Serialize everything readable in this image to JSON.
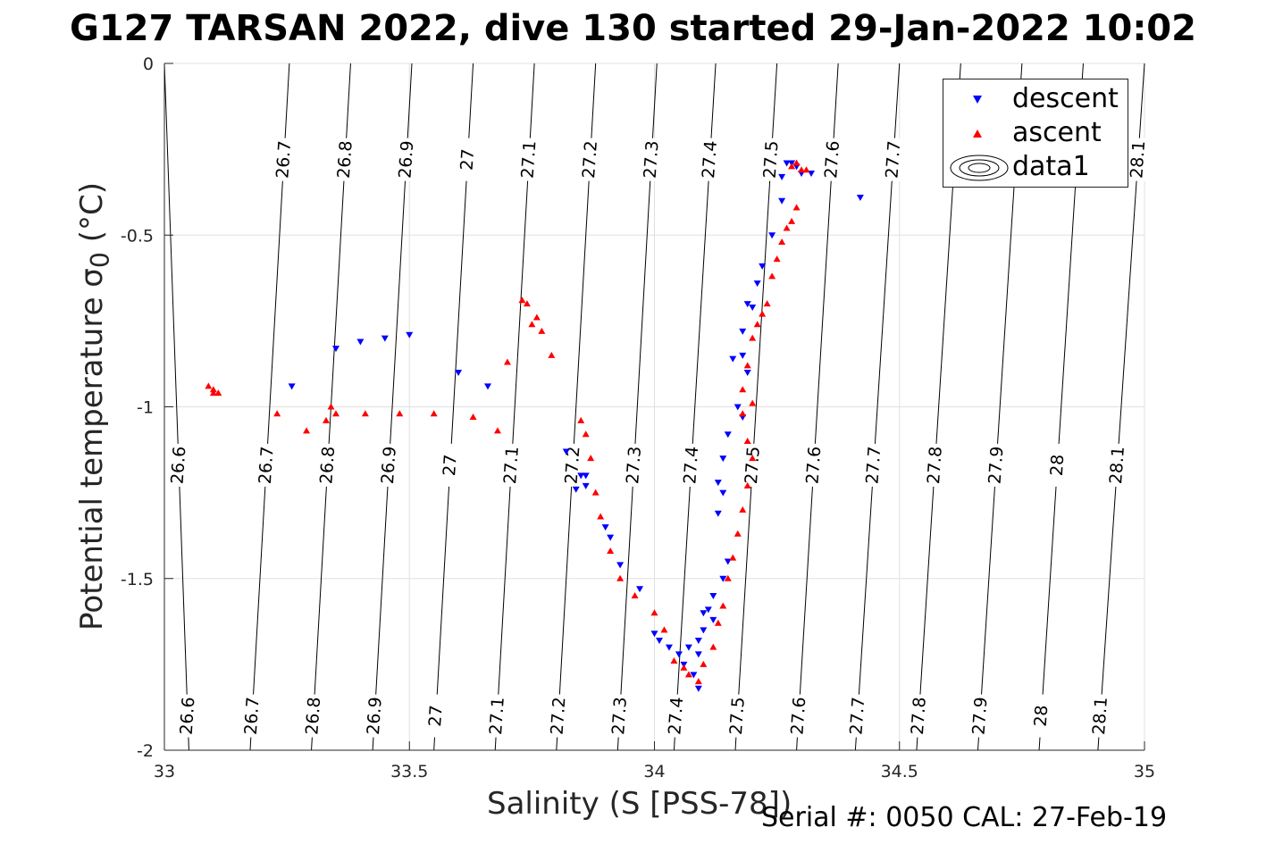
{
  "title": "G127 TARSAN 2022, dive 130 started 29-Jan-2022 10:02",
  "footer": "Serial #: 0050  CAL: 27-Feb-19",
  "legend": [
    {
      "label": "descent",
      "color": "#0000ff",
      "marker": "triangle-down"
    },
    {
      "label": "ascent",
      "color": "#ff0000",
      "marker": "triangle-up"
    },
    {
      "label": "data1",
      "color": "#000000",
      "marker": "contour"
    }
  ],
  "chart_data": {
    "type": "scatter",
    "title": "G127 TARSAN 2022, dive 130 started 29-Jan-2022 10:02",
    "xlabel_prefix": "Salinity (S [PSS-78])",
    "ylabel_main": "Potential temperature ",
    "ylabel_sigma": "σ",
    "ylabel_sub": "0",
    "ylabel_unit": " (°C)",
    "xlim": [
      33,
      35
    ],
    "ylim": [
      -2,
      0
    ],
    "xticks": [
      33,
      33.5,
      34,
      34.5,
      35
    ],
    "yticks": [
      0,
      -0.5,
      -1,
      -1.5,
      -2
    ],
    "grid": true,
    "legend_position": "top-right",
    "isopycnals": [
      {
        "label": "26.6",
        "bottom_s": 33.05,
        "top_s": 33.0
      },
      {
        "label": "26.7",
        "bottom_s": 33.175,
        "top_s": 33.255
      },
      {
        "label": "26.8",
        "bottom_s": 33.3,
        "top_s": 33.38
      },
      {
        "label": "26.9",
        "bottom_s": 33.425,
        "top_s": 33.505
      },
      {
        "label": "27",
        "bottom_s": 33.55,
        "top_s": 33.63
      },
      {
        "label": "27.1",
        "bottom_s": 33.675,
        "top_s": 33.755
      },
      {
        "label": "27.2",
        "bottom_s": 33.8,
        "top_s": 33.88
      },
      {
        "label": "27.3",
        "bottom_s": 33.925,
        "top_s": 34.005
      },
      {
        "label": "27.4",
        "bottom_s": 34.04,
        "top_s": 34.125
      },
      {
        "label": "27.5",
        "bottom_s": 34.165,
        "top_s": 34.25
      },
      {
        "label": "27.6",
        "bottom_s": 34.29,
        "top_s": 34.375
      },
      {
        "label": "27.7",
        "bottom_s": 34.41,
        "top_s": 34.5
      },
      {
        "label": "27.8",
        "bottom_s": 34.535,
        "top_s": 34.625
      },
      {
        "label": "27.9",
        "bottom_s": 34.66,
        "top_s": 34.75
      },
      {
        "label": "28",
        "bottom_s": 34.785,
        "top_s": 34.875
      },
      {
        "label": "28.1",
        "bottom_s": 34.905,
        "top_s": 35.0
      }
    ],
    "series": [
      {
        "name": "descent",
        "color": "#0000ff",
        "marker": "triangle-down",
        "points": [
          [
            34.27,
            -0.29
          ],
          [
            34.28,
            -0.29
          ],
          [
            34.29,
            -0.3
          ],
          [
            34.26,
            -0.33
          ],
          [
            34.3,
            -0.32
          ],
          [
            34.32,
            -0.32
          ],
          [
            34.42,
            -0.39
          ],
          [
            34.26,
            -0.4
          ],
          [
            34.24,
            -0.5
          ],
          [
            34.22,
            -0.59
          ],
          [
            34.21,
            -0.64
          ],
          [
            34.19,
            -0.7
          ],
          [
            34.2,
            -0.71
          ],
          [
            34.18,
            -0.78
          ],
          [
            34.16,
            -0.86
          ],
          [
            34.18,
            -0.85
          ],
          [
            34.19,
            -0.9
          ],
          [
            34.17,
            -1.0
          ],
          [
            34.18,
            -1.03
          ],
          [
            34.15,
            -1.08
          ],
          [
            34.14,
            -1.15
          ],
          [
            34.13,
            -1.22
          ],
          [
            34.14,
            -1.25
          ],
          [
            34.13,
            -1.31
          ],
          [
            34.15,
            -1.45
          ],
          [
            34.14,
            -1.5
          ],
          [
            34.12,
            -1.55
          ],
          [
            34.11,
            -1.59
          ],
          [
            34.1,
            -1.6
          ],
          [
            34.12,
            -1.62
          ],
          [
            34.1,
            -1.65
          ],
          [
            34.09,
            -1.68
          ],
          [
            34.07,
            -1.7
          ],
          [
            34.09,
            -1.72
          ],
          [
            34.06,
            -1.75
          ],
          [
            34.08,
            -1.78
          ],
          [
            34.09,
            -1.82
          ],
          [
            34.05,
            -1.72
          ],
          [
            34.03,
            -1.7
          ],
          [
            34.01,
            -1.68
          ],
          [
            34.0,
            -1.66
          ],
          [
            33.97,
            -1.53
          ],
          [
            33.93,
            -1.46
          ],
          [
            33.91,
            -1.38
          ],
          [
            33.9,
            -1.35
          ],
          [
            33.86,
            -1.2
          ],
          [
            33.85,
            -1.2
          ],
          [
            33.86,
            -1.23
          ],
          [
            33.84,
            -1.24
          ],
          [
            33.82,
            -1.13
          ],
          [
            33.66,
            -0.94
          ],
          [
            33.6,
            -0.9
          ],
          [
            33.5,
            -0.79
          ],
          [
            33.45,
            -0.8
          ],
          [
            33.4,
            -0.81
          ],
          [
            33.35,
            -0.83
          ],
          [
            33.26,
            -0.94
          ]
        ]
      },
      {
        "name": "ascent",
        "color": "#ff0000",
        "marker": "triangle-up",
        "points": [
          [
            33.09,
            -0.94
          ],
          [
            33.1,
            -0.95
          ],
          [
            33.1,
            -0.96
          ],
          [
            33.11,
            -0.96
          ],
          [
            33.23,
            -1.02
          ],
          [
            33.29,
            -1.07
          ],
          [
            33.33,
            -1.04
          ],
          [
            33.34,
            -1.0
          ],
          [
            33.35,
            -1.02
          ],
          [
            33.41,
            -1.02
          ],
          [
            33.48,
            -1.02
          ],
          [
            33.55,
            -1.02
          ],
          [
            33.63,
            -1.03
          ],
          [
            33.68,
            -1.07
          ],
          [
            33.7,
            -0.87
          ],
          [
            33.73,
            -0.69
          ],
          [
            33.74,
            -0.7
          ],
          [
            33.75,
            -0.76
          ],
          [
            33.76,
            -0.74
          ],
          [
            33.77,
            -0.78
          ],
          [
            33.79,
            -0.85
          ],
          [
            33.85,
            -1.04
          ],
          [
            33.86,
            -1.08
          ],
          [
            33.87,
            -1.15
          ],
          [
            33.88,
            -1.25
          ],
          [
            33.89,
            -1.32
          ],
          [
            33.91,
            -1.42
          ],
          [
            33.93,
            -1.5
          ],
          [
            33.96,
            -1.55
          ],
          [
            34.0,
            -1.6
          ],
          [
            34.02,
            -1.65
          ],
          [
            34.04,
            -1.74
          ],
          [
            34.06,
            -1.76
          ],
          [
            34.07,
            -1.78
          ],
          [
            34.09,
            -1.8
          ],
          [
            34.1,
            -1.75
          ],
          [
            34.12,
            -1.7
          ],
          [
            34.13,
            -1.63
          ],
          [
            34.14,
            -1.58
          ],
          [
            34.15,
            -1.5
          ],
          [
            34.16,
            -1.44
          ],
          [
            34.17,
            -1.37
          ],
          [
            34.18,
            -1.3
          ],
          [
            34.19,
            -1.23
          ],
          [
            34.2,
            -1.15
          ],
          [
            34.19,
            -1.1
          ],
          [
            34.18,
            -1.02
          ],
          [
            34.2,
            -0.99
          ],
          [
            34.18,
            -0.95
          ],
          [
            34.19,
            -0.88
          ],
          [
            34.2,
            -0.8
          ],
          [
            34.21,
            -0.76
          ],
          [
            34.22,
            -0.73
          ],
          [
            34.23,
            -0.7
          ],
          [
            34.24,
            -0.62
          ],
          [
            34.25,
            -0.57
          ],
          [
            34.26,
            -0.52
          ],
          [
            34.27,
            -0.48
          ],
          [
            34.28,
            -0.46
          ],
          [
            34.29,
            -0.42
          ],
          [
            34.3,
            -0.31
          ],
          [
            34.28,
            -0.3
          ],
          [
            34.31,
            -0.31
          ],
          [
            34.29,
            -0.29
          ]
        ]
      }
    ]
  }
}
